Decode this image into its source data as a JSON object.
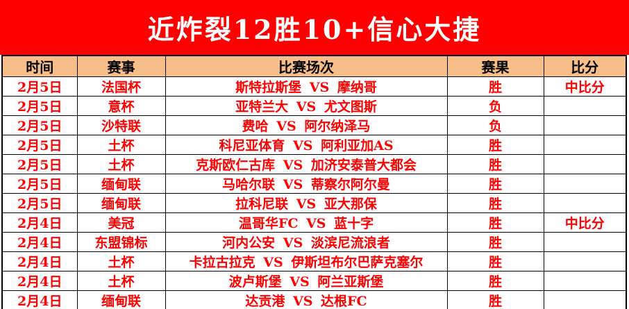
{
  "banner": {
    "title": "近炸裂12胜10+信心大捷",
    "bg_color": "#FF0000",
    "text_color": "#FFFFFF"
  },
  "table": {
    "headers": [
      "时间",
      "赛事",
      "比赛场次",
      "赛果",
      "比分"
    ],
    "header_bg_color": "#F7BE8A",
    "win_bg_color": "#FFFF00",
    "win_text_color": "#FF0000",
    "loss_text_color": "#000000",
    "rows": [
      {
        "date": "2月5日",
        "league": "法国杯",
        "match": "斯特拉斯堡 VS 摩纳哥",
        "result": "胜",
        "win": true,
        "score": "中比分"
      },
      {
        "date": "2月5日",
        "league": "意杯",
        "match": "亚特兰大 VS 尤文图斯",
        "result": "负",
        "win": false,
        "score": ""
      },
      {
        "date": "2月5日",
        "league": "沙特联",
        "match": "费哈 VS 阿尔纳泽马",
        "result": "负",
        "win": false,
        "score": ""
      },
      {
        "date": "2月5日",
        "league": "土杯",
        "match": "科尼亚体育 VS 阿利亚加AS",
        "result": "胜",
        "win": true,
        "score": ""
      },
      {
        "date": "2月5日",
        "league": "土杯",
        "match": "克斯欧仁古库 VS 加济安泰普大都会",
        "result": "胜",
        "win": true,
        "score": ""
      },
      {
        "date": "2月5日",
        "league": "缅甸联",
        "match": "马哈尔联 VS 蒂察尔阿尔曼",
        "result": "胜",
        "win": true,
        "score": ""
      },
      {
        "date": "2月5日",
        "league": "缅甸联",
        "match": "拉科尼联 VS 亚大那保",
        "result": "胜",
        "win": true,
        "score": ""
      },
      {
        "date": "2月4日",
        "league": "美冠",
        "match": "温哥华FC VS 蓝十字",
        "result": "胜",
        "win": true,
        "score": "中比分"
      },
      {
        "date": "2月4日",
        "league": "东盟锦标",
        "match": "河内公安 VS 淡滨尼流浪者",
        "result": "胜",
        "win": true,
        "score": ""
      },
      {
        "date": "2月4日",
        "league": "土杯",
        "match": "卡拉古拉克 VS 伊斯坦布尔巴萨克塞尔",
        "result": "胜",
        "win": true,
        "score": ""
      },
      {
        "date": "2月4日",
        "league": "土杯",
        "match": "波卢斯堡 VS 阿兰亚斯堡",
        "result": "胜",
        "win": true,
        "score": ""
      },
      {
        "date": "2月4日",
        "league": "缅甸联",
        "match": "达贡港 VS 达根FC",
        "result": "胜",
        "win": true,
        "score": ""
      }
    ]
  }
}
